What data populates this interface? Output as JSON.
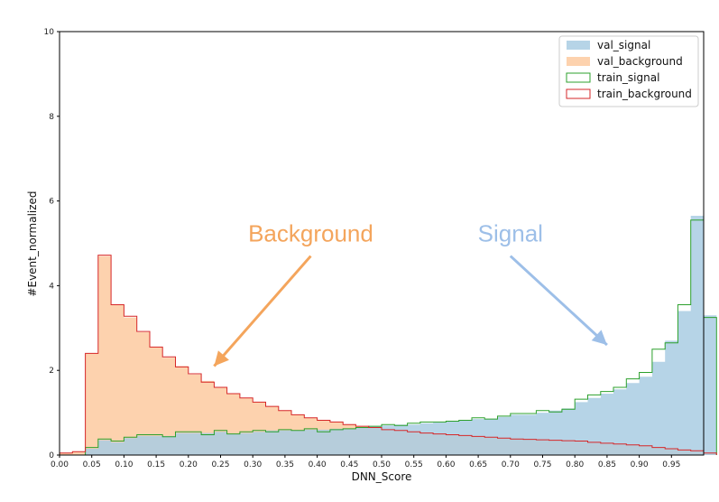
{
  "chart_data": {
    "type": "histogram",
    "xlabel": "DNN_Score",
    "ylabel": "#Event_normalized",
    "xlim": [
      0.0,
      1.0
    ],
    "ylim": [
      0,
      10
    ],
    "x_ticks": [
      "0.00",
      "0.05",
      "0.10",
      "0.15",
      "0.20",
      "0.25",
      "0.30",
      "0.35",
      "0.40",
      "0.45",
      "0.50",
      "0.55",
      "0.60",
      "0.65",
      "0.70",
      "0.75",
      "0.80",
      "0.85",
      "0.90",
      "0.95"
    ],
    "y_ticks": [
      "0",
      "2",
      "4",
      "6",
      "8",
      "10"
    ],
    "bin_width": 0.02,
    "bin_edges_start": 0.0,
    "legend_position": "top-right",
    "series": [
      {
        "name": "val_signal",
        "style": "filled",
        "color": "#a9cce3",
        "values": [
          0,
          0,
          0.15,
          0.35,
          0.3,
          0.4,
          0.45,
          0.45,
          0.45,
          0.52,
          0.52,
          0.52,
          0.55,
          0.5,
          0.52,
          0.55,
          0.58,
          0.58,
          0.58,
          0.6,
          0.6,
          0.62,
          0.62,
          0.65,
          0.68,
          0.7,
          0.72,
          0.72,
          0.75,
          0.77,
          0.8,
          0.82,
          0.85,
          0.85,
          0.9,
          0.95,
          0.95,
          1.0,
          1.05,
          1.1,
          1.25,
          1.35,
          1.45,
          1.55,
          1.7,
          1.85,
          2.2,
          2.7,
          3.4,
          5.65,
          3.3
        ]
      },
      {
        "name": "val_background",
        "style": "filled",
        "color": "#fdcaa0",
        "values": [
          0.05,
          0.08,
          2.4,
          4.7,
          3.55,
          3.25,
          2.9,
          2.55,
          2.3,
          2.1,
          1.9,
          1.75,
          1.6,
          1.45,
          1.35,
          1.25,
          1.15,
          1.05,
          0.95,
          0.88,
          0.82,
          0.78,
          0.72,
          0.68,
          0.65,
          0.6,
          0.58,
          0.55,
          0.52,
          0.5,
          0.48,
          0.46,
          0.44,
          0.42,
          0.4,
          0.38,
          0.37,
          0.36,
          0.35,
          0.34,
          0.33,
          0.3,
          0.28,
          0.26,
          0.24,
          0.22,
          0.18,
          0.15,
          0.12,
          0.1,
          0.05
        ]
      },
      {
        "name": "train_signal",
        "style": "step",
        "color": "#2ca02c",
        "values": [
          0,
          0,
          0.18,
          0.38,
          0.33,
          0.42,
          0.48,
          0.48,
          0.43,
          0.55,
          0.55,
          0.48,
          0.58,
          0.5,
          0.55,
          0.58,
          0.55,
          0.6,
          0.58,
          0.62,
          0.55,
          0.6,
          0.62,
          0.65,
          0.68,
          0.72,
          0.7,
          0.75,
          0.78,
          0.78,
          0.8,
          0.82,
          0.88,
          0.85,
          0.92,
          0.98,
          0.98,
          1.05,
          1.02,
          1.08,
          1.32,
          1.42,
          1.5,
          1.6,
          1.8,
          1.95,
          2.5,
          2.65,
          3.55,
          5.55,
          3.25
        ]
      },
      {
        "name": "train_background",
        "style": "step",
        "color": "#d62728",
        "values": [
          0.05,
          0.08,
          2.4,
          4.72,
          3.55,
          3.28,
          2.92,
          2.55,
          2.32,
          2.08,
          1.92,
          1.72,
          1.6,
          1.45,
          1.35,
          1.25,
          1.15,
          1.05,
          0.95,
          0.88,
          0.82,
          0.78,
          0.72,
          0.68,
          0.65,
          0.6,
          0.58,
          0.55,
          0.52,
          0.5,
          0.48,
          0.46,
          0.44,
          0.42,
          0.4,
          0.38,
          0.37,
          0.36,
          0.35,
          0.34,
          0.33,
          0.3,
          0.28,
          0.26,
          0.24,
          0.22,
          0.18,
          0.15,
          0.12,
          0.1,
          0.05
        ]
      }
    ],
    "annotations": [
      {
        "text": "Background",
        "color": "#f4a55c",
        "arrow_from": [
          0.39,
          4.7
        ],
        "arrow_to": [
          0.24,
          2.1
        ]
      },
      {
        "text": "Signal",
        "color": "#9dbfe8",
        "arrow_from": [
          0.7,
          4.7
        ],
        "arrow_to": [
          0.85,
          2.6
        ]
      }
    ]
  }
}
